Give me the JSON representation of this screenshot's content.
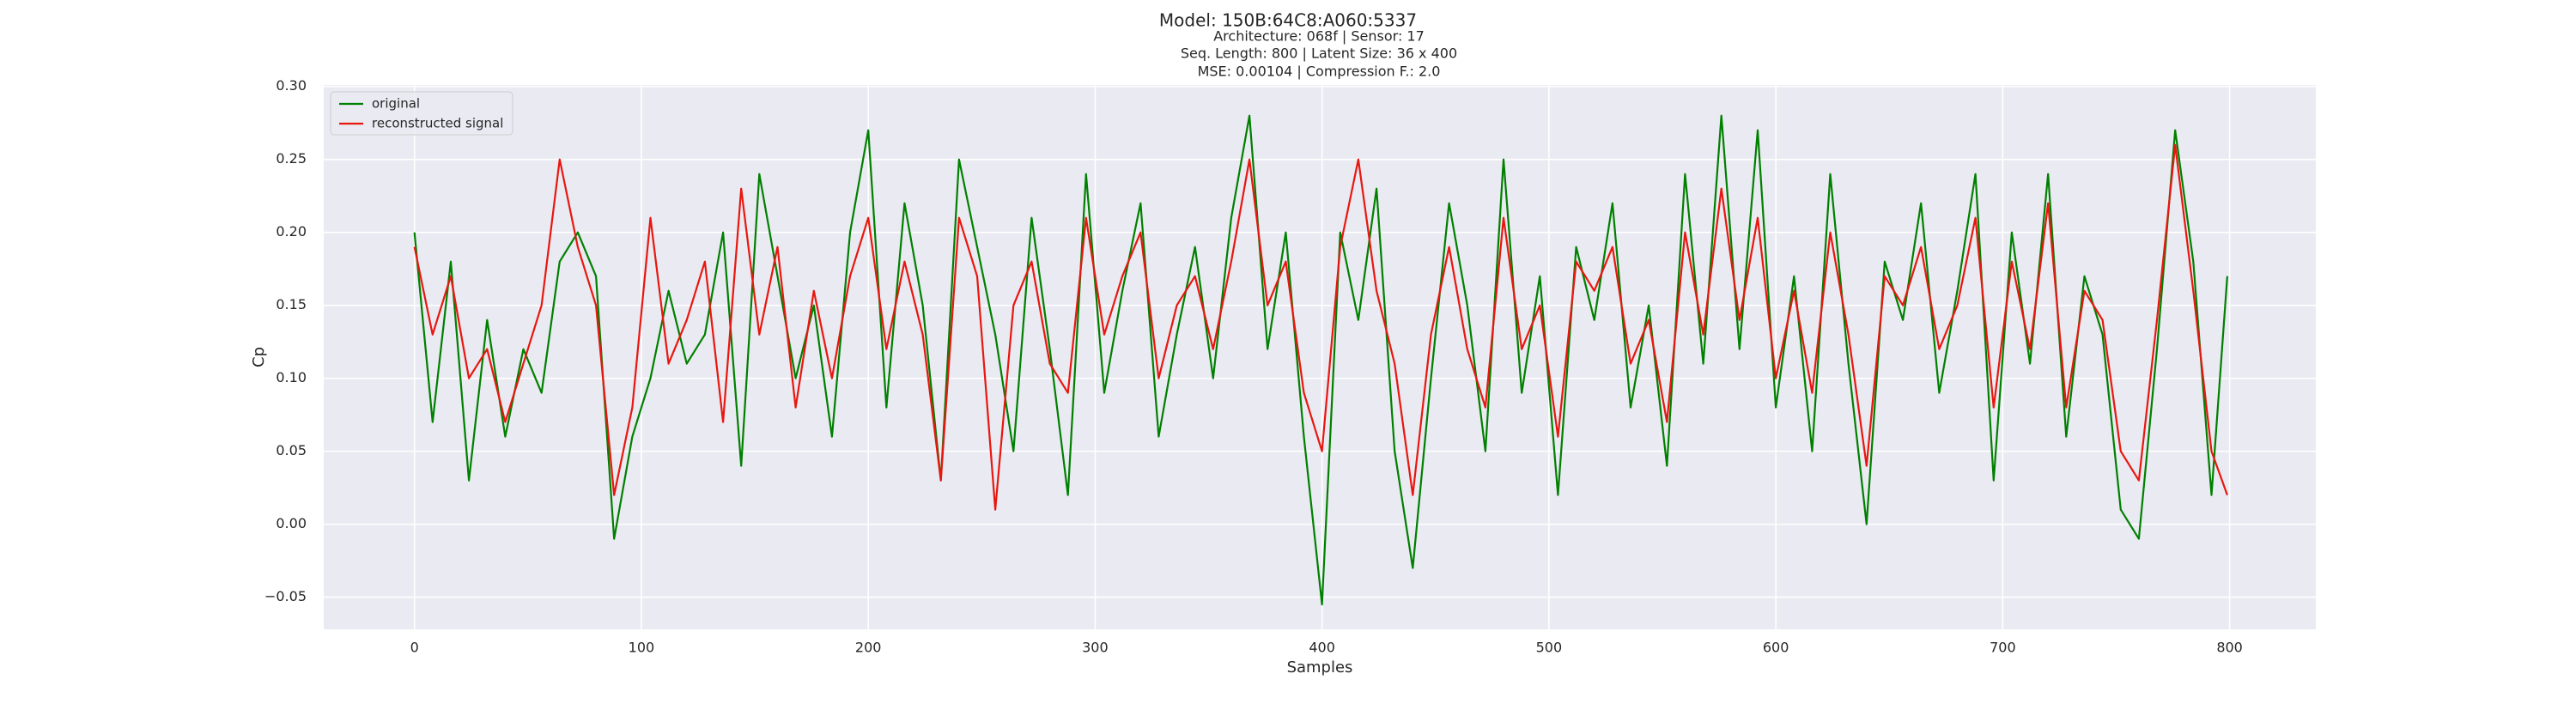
{
  "chart_data": {
    "type": "line",
    "title": "Model: 150B:64C8:A060:5337",
    "subtitle": [
      "Architecture: 068f | Sensor: 17",
      "Seq. Length: 800 | Latent Size: 36 x 400",
      "MSE: 0.00104 | Compression F.: 2.0"
    ],
    "x_label": "Samples",
    "y_label": "Cp",
    "x": [
      0,
      8,
      16,
      24,
      32,
      40,
      48,
      56,
      64,
      72,
      80,
      88,
      96,
      104,
      112,
      120,
      128,
      136,
      144,
      152,
      160,
      168,
      176,
      184,
      192,
      200,
      208,
      216,
      224,
      232,
      240,
      248,
      256,
      264,
      272,
      280,
      288,
      296,
      304,
      312,
      320,
      328,
      336,
      344,
      352,
      360,
      368,
      376,
      384,
      392,
      400,
      408,
      416,
      424,
      432,
      440,
      448,
      456,
      464,
      472,
      480,
      488,
      496,
      504,
      512,
      520,
      528,
      536,
      544,
      552,
      560,
      568,
      576,
      584,
      592,
      600,
      608,
      616,
      624,
      632,
      640,
      648,
      656,
      664,
      672,
      680,
      688,
      696,
      704,
      712,
      720,
      728,
      736,
      744,
      752,
      760,
      768,
      776,
      784,
      792,
      799
    ],
    "series": [
      {
        "name": "original",
        "color": "#008000",
        "values": [
          0.2,
          0.07,
          0.18,
          0.03,
          0.14,
          0.06,
          0.12,
          0.09,
          0.18,
          0.2,
          0.17,
          -0.01,
          0.06,
          0.1,
          0.16,
          0.11,
          0.13,
          0.2,
          0.04,
          0.24,
          0.17,
          0.1,
          0.15,
          0.06,
          0.2,
          0.27,
          0.08,
          0.22,
          0.15,
          0.03,
          0.25,
          0.19,
          0.13,
          0.05,
          0.21,
          0.12,
          0.02,
          0.24,
          0.09,
          0.16,
          0.22,
          0.06,
          0.13,
          0.19,
          0.1,
          0.21,
          0.28,
          0.12,
          0.2,
          0.06,
          -0.055,
          0.2,
          0.14,
          0.23,
          0.05,
          -0.03,
          0.1,
          0.22,
          0.15,
          0.05,
          0.25,
          0.09,
          0.17,
          0.02,
          0.19,
          0.14,
          0.22,
          0.08,
          0.15,
          0.04,
          0.24,
          0.11,
          0.28,
          0.12,
          0.27,
          0.08,
          0.17,
          0.05,
          0.24,
          0.11,
          0.0,
          0.18,
          0.14,
          0.22,
          0.09,
          0.16,
          0.24,
          0.03,
          0.2,
          0.11,
          0.24,
          0.06,
          0.17,
          0.13,
          0.01,
          -0.01,
          0.12,
          0.27,
          0.18,
          0.02,
          0.17
        ]
      },
      {
        "name": "reconstructed signal",
        "color": "#e8170f",
        "values": [
          0.19,
          0.13,
          0.17,
          0.1,
          0.12,
          0.07,
          0.11,
          0.15,
          0.25,
          0.19,
          0.15,
          0.02,
          0.08,
          0.21,
          0.11,
          0.14,
          0.18,
          0.07,
          0.23,
          0.13,
          0.19,
          0.08,
          0.16,
          0.1,
          0.17,
          0.21,
          0.12,
          0.18,
          0.13,
          0.03,
          0.21,
          0.17,
          0.01,
          0.15,
          0.18,
          0.11,
          0.09,
          0.21,
          0.13,
          0.17,
          0.2,
          0.1,
          0.15,
          0.17,
          0.12,
          0.18,
          0.25,
          0.15,
          0.18,
          0.09,
          0.05,
          0.19,
          0.25,
          0.16,
          0.11,
          0.02,
          0.13,
          0.19,
          0.12,
          0.08,
          0.21,
          0.12,
          0.15,
          0.06,
          0.18,
          0.16,
          0.19,
          0.11,
          0.14,
          0.07,
          0.2,
          0.13,
          0.23,
          0.14,
          0.21,
          0.1,
          0.16,
          0.09,
          0.2,
          0.13,
          0.04,
          0.17,
          0.15,
          0.19,
          0.12,
          0.15,
          0.21,
          0.08,
          0.18,
          0.12,
          0.22,
          0.08,
          0.16,
          0.14,
          0.05,
          0.03,
          0.14,
          0.26,
          0.16,
          0.05,
          0.02
        ]
      }
    ],
    "xlim": [
      -40,
      838
    ],
    "xticks": [
      0,
      100,
      200,
      300,
      400,
      500,
      600,
      700,
      800
    ],
    "ylim": [
      -0.072,
      0.301
    ],
    "yticks": [
      {
        "value": -0.05,
        "label": "−0.05"
      },
      {
        "value": 0,
        "label": "0.00"
      },
      {
        "value": 0.05,
        "label": "0.05"
      },
      {
        "value": 0.1,
        "label": "0.10"
      },
      {
        "value": 0.15,
        "label": "0.15"
      },
      {
        "value": 0.2,
        "label": "0.20"
      },
      {
        "value": 0.25,
        "label": "0.25"
      },
      {
        "value": 0.3,
        "label": "0.30"
      }
    ],
    "grid": true,
    "legend": "upper left"
  }
}
